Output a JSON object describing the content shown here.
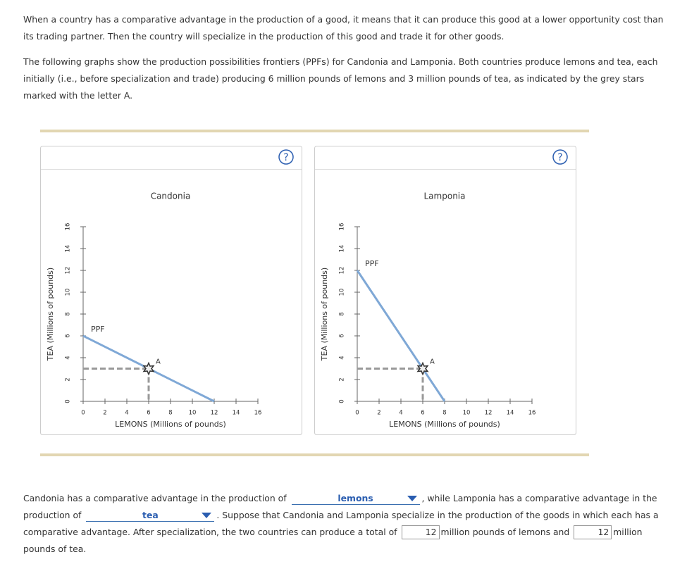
{
  "intro": [
    "When a country has a comparative advantage in the production of a good, it means that it can produce this good at a lower opportunity cost than its trading partner. Then the country will specialize in the production of this good and trade it for other goods.",
    "The following graphs show the production possibilities frontiers (PPFs) for Candonia and Lamponia. Both countries produce lemons and tea, each initially (i.e., before specialization and trade) producing 6 million pounds of lemons and 3 million pounds of tea, as indicated by the grey stars marked with the letter A."
  ],
  "help_button": "?",
  "chart_data": [
    {
      "type": "line",
      "title": "Candonia",
      "x_label": "LEMONS (Millions of pounds)",
      "y_label": "TEA (Millions of pounds)",
      "x": [
        0,
        12
      ],
      "series": [
        {
          "name": "PPF",
          "color": "#7fa8d6",
          "values": [
            6,
            0
          ]
        }
      ],
      "point": {
        "label": "A",
        "x": 6,
        "y": 3
      },
      "xlim": [
        0,
        16
      ],
      "ylim": [
        0,
        16
      ],
      "xticks": [
        0,
        2,
        4,
        6,
        8,
        10,
        12,
        14,
        16
      ],
      "yticks": [
        0,
        2,
        4,
        6,
        8,
        10,
        12,
        14,
        16
      ]
    },
    {
      "type": "line",
      "title": "Lamponia",
      "x_label": "LEMONS (Millions of pounds)",
      "y_label": "TEA (Millions of pounds)",
      "x": [
        0,
        8
      ],
      "series": [
        {
          "name": "PPF",
          "color": "#7fa8d6",
          "values": [
            12,
            0
          ]
        }
      ],
      "point": {
        "label": "A",
        "x": 6,
        "y": 3
      },
      "xlim": [
        0,
        16
      ],
      "ylim": [
        0,
        16
      ],
      "xticks": [
        0,
        2,
        4,
        6,
        8,
        10,
        12,
        14,
        16
      ],
      "yticks": [
        0,
        2,
        4,
        6,
        8,
        10,
        12,
        14,
        16
      ]
    }
  ],
  "question": {
    "parts": [
      "Candonia has a comparative advantage in the production of",
      ", while Lamponia has a comparative advantage in the production of",
      ". Suppose that Candonia and Lamponia specialize in the production of the goods in which each has a comparative advantage. After specialization, the two countries can produce a total of",
      "million pounds of lemons and",
      "million pounds of tea."
    ],
    "dropdowns": [
      "lemons",
      "tea"
    ],
    "inputs": [
      12,
      12
    ]
  }
}
